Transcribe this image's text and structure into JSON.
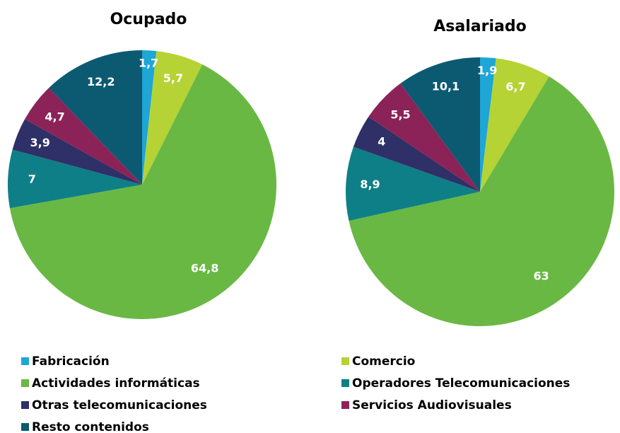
{
  "chart_data": [
    {
      "type": "pie",
      "title": "Ocupado",
      "values": [
        1.7,
        5.7,
        64.8,
        7,
        3.9,
        4.7,
        12.2
      ],
      "value_labels": [
        "1,7",
        "5,7",
        "64,8",
        "7",
        "3,9",
        "4,7",
        "12,2"
      ]
    },
    {
      "type": "pie",
      "title": "Asalariado",
      "values": [
        1.9,
        6.7,
        63,
        8.9,
        4,
        5.5,
        10.1
      ],
      "value_labels": [
        "1,9",
        "6,7",
        "63",
        "8,9",
        "4",
        "5,5",
        "10,1"
      ]
    }
  ],
  "legend": {
    "categories": [
      "Fabricación",
      "Comercio",
      "Actividades informáticas",
      "Operadores Telecomunicaciones",
      "Otras telecomunicaciones",
      "Servicios Audiovisuales",
      "Resto contenidos"
    ],
    "colors": [
      "#1ea6d6",
      "#b5d334",
      "#6ab844",
      "#0e7f86",
      "#2e3067",
      "#8b2358",
      "#0c5a72"
    ]
  }
}
